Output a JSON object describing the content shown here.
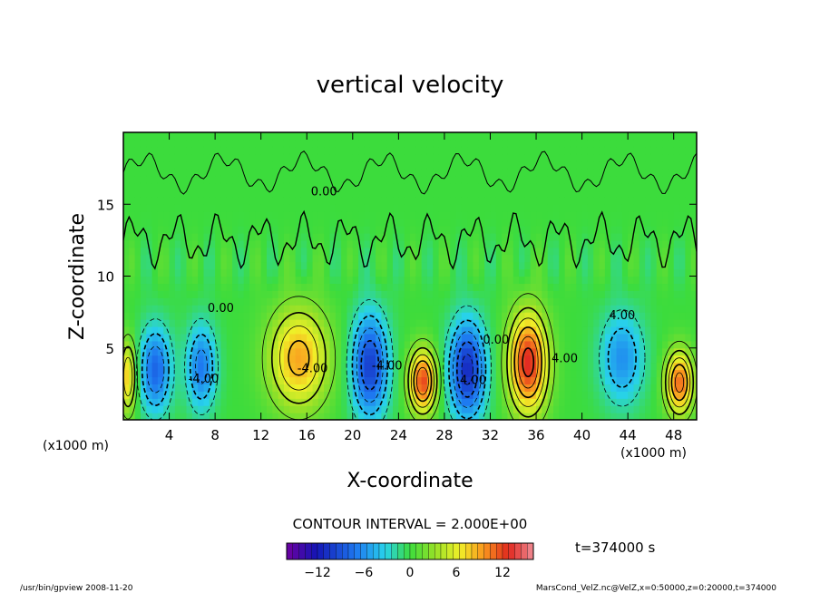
{
  "chart_data": {
    "type": "heatmap",
    "title": "vertical velocity",
    "xlabel": "X-coordinate",
    "ylabel": "Z-coordinate",
    "x_unit_left": "(x1000 m)",
    "x_unit_right": "(x1000 m)",
    "x_ticks": [
      "4",
      "8",
      "12",
      "16",
      "20",
      "24",
      "28",
      "32",
      "36",
      "40",
      "44",
      "48"
    ],
    "y_ticks": [
      "5",
      "10",
      "15"
    ],
    "xlim": [
      0,
      50
    ],
    "ylim": [
      0,
      20
    ],
    "contour_interval_text": "CONTOUR INTERVAL = 2.000E+00",
    "contour_labels": [
      {
        "text": "0.00",
        "x": 17.5,
        "y": 15.6
      },
      {
        "text": "0.00",
        "x": 8.5,
        "y": 7.5
      },
      {
        "text": "-4.00",
        "x": 7.0,
        "y": 2.6
      },
      {
        "text": "-4.00",
        "x": 16.5,
        "y": 3.3
      },
      {
        "text": "-4.00",
        "x": 23.0,
        "y": 3.5
      },
      {
        "text": "0.00",
        "x": 32.5,
        "y": 5.3
      },
      {
        "text": "4.00",
        "x": 30.5,
        "y": 2.5
      },
      {
        "text": "4.00",
        "x": 38.5,
        "y": 4.0
      },
      {
        "text": "4.00",
        "x": 43.5,
        "y": 7.0
      }
    ],
    "cells": [
      {
        "x": 2.8,
        "z": 3.5,
        "amp": -8,
        "sx": 1.4,
        "sz": 3.0
      },
      {
        "x": 6.8,
        "z": 3.7,
        "amp": -7,
        "sx": 1.3,
        "sz": 3.0
      },
      {
        "x": 15.3,
        "z": 4.3,
        "amp": 9,
        "sx": 2.6,
        "sz": 3.5
      },
      {
        "x": 21.5,
        "z": 3.8,
        "amp": -10,
        "sx": 1.6,
        "sz": 3.6
      },
      {
        "x": 26.1,
        "z": 2.7,
        "amp": 12,
        "sx": 1.2,
        "sz": 2.2
      },
      {
        "x": 30.0,
        "z": 3.5,
        "amp": -11,
        "sx": 1.6,
        "sz": 3.4
      },
      {
        "x": 35.3,
        "z": 4.0,
        "amp": 13,
        "sx": 1.7,
        "sz": 3.5
      },
      {
        "x": 43.5,
        "z": 4.3,
        "amp": -6,
        "sx": 1.9,
        "sz": 3.2
      },
      {
        "x": 48.5,
        "z": 2.6,
        "amp": 11,
        "sx": 1.2,
        "sz": 2.2
      },
      {
        "x": 0.4,
        "z": 3.0,
        "amp": 8,
        "sx": 0.7,
        "sz": 2.5
      }
    ],
    "colorbar": {
      "min": -16,
      "max": 16,
      "ticks": [
        "-12",
        "-6",
        "0",
        "6",
        "12"
      ]
    },
    "time_label": "t=374000 s",
    "grid": false
  },
  "footer": {
    "left": "/usr/bin/gpview  2008-11-20",
    "right": "MarsCond_VelZ.nc@VelZ,x=0:50000,z=0:20000,t=374000"
  }
}
